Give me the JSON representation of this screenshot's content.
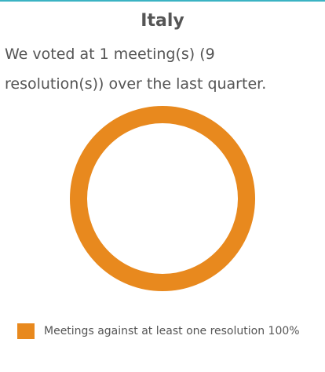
{
  "chart_data": {
    "type": "donut",
    "title": "Italy",
    "subtitle": "We voted at 1 meeting(s) (9 resolution(s)) over the last quarter.",
    "categories": [
      "Meetings against at least one resolution"
    ],
    "values": [
      100
    ],
    "value_labels": [
      "100%"
    ],
    "colors": [
      "#e8891e"
    ]
  }
}
